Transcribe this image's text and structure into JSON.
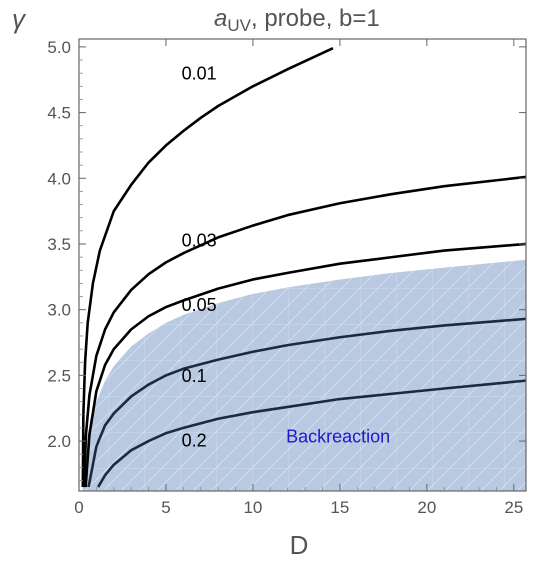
{
  "chart_data": {
    "type": "line",
    "title_main": "a",
    "title_sub": "UV",
    "title_rest": ", probe, b=1",
    "xlabel": "D",
    "ylabel": "γ",
    "xlim": [
      0,
      25.7
    ],
    "ylim": [
      1.62,
      5.06
    ],
    "x_ticks": [
      0,
      5,
      10,
      15,
      20,
      25
    ],
    "y_ticks": [
      2.0,
      2.5,
      3.0,
      3.5,
      4.0,
      4.5,
      5.0
    ],
    "x_tick_labels": [
      "0",
      "5",
      "10",
      "15",
      "20",
      "25"
    ],
    "y_tick_labels": [
      "2.0",
      "2.5",
      "3.0",
      "3.5",
      "4.0",
      "4.5",
      "5.0"
    ],
    "series": [
      {
        "name": "0.01",
        "label_at": [
          5.9,
          4.75
        ],
        "x": [
          0.22,
          0.25,
          0.35,
          0.5,
          0.8,
          1.2,
          2,
          3,
          4,
          5,
          6,
          7,
          8,
          10,
          12,
          14.6
        ],
        "y": [
          1.65,
          2.2,
          2.6,
          2.9,
          3.2,
          3.45,
          3.75,
          3.95,
          4.12,
          4.25,
          4.36,
          4.46,
          4.55,
          4.7,
          4.83,
          4.99
        ]
      },
      {
        "name": "0.03",
        "label_at": [
          5.9,
          3.48
        ],
        "x": [
          0.28,
          0.4,
          0.6,
          1,
          1.5,
          2,
          3,
          4,
          5,
          6,
          8,
          10,
          12,
          15,
          18,
          21,
          25.7
        ],
        "y": [
          1.65,
          2.05,
          2.35,
          2.65,
          2.85,
          2.98,
          3.15,
          3.27,
          3.36,
          3.43,
          3.55,
          3.64,
          3.72,
          3.81,
          3.88,
          3.94,
          4.01
        ]
      },
      {
        "name": "0.05",
        "label_at": [
          5.9,
          2.99
        ],
        "x": [
          0.38,
          0.6,
          1,
          1.5,
          2,
          3,
          4,
          5,
          6,
          8,
          10,
          12,
          15,
          18,
          21,
          25.7
        ],
        "y": [
          1.65,
          2.05,
          2.38,
          2.58,
          2.7,
          2.85,
          2.95,
          3.02,
          3.07,
          3.16,
          3.23,
          3.28,
          3.35,
          3.4,
          3.45,
          3.5
        ]
      },
      {
        "name": "0.1",
        "label_at": [
          5.9,
          2.45
        ],
        "x": [
          0.55,
          1,
          1.5,
          2,
          3,
          4,
          5,
          6,
          8,
          10,
          12,
          15,
          18,
          21,
          25.7
        ],
        "y": [
          1.65,
          1.96,
          2.12,
          2.21,
          2.34,
          2.43,
          2.5,
          2.55,
          2.62,
          2.68,
          2.73,
          2.79,
          2.84,
          2.88,
          2.93
        ]
      },
      {
        "name": "0.2",
        "label_at": [
          5.9,
          1.96
        ],
        "x": [
          1.1,
          1.5,
          2,
          3,
          4,
          5,
          6,
          8,
          10,
          12,
          15,
          18,
          21,
          25.7
        ],
        "y": [
          1.65,
          1.74,
          1.82,
          1.93,
          2.0,
          2.06,
          2.1,
          2.17,
          2.22,
          2.26,
          2.32,
          2.36,
          2.4,
          2.46
        ]
      }
    ],
    "regions": [
      {
        "name": "Backreaction",
        "label_at": [
          14.9,
          1.99
        ],
        "fill": "#b7c8e0",
        "boundary_x": [
          0.2,
          0.5,
          1,
          1.5,
          2,
          3,
          4,
          5,
          6,
          8,
          10,
          12,
          15,
          18,
          21,
          25.7
        ],
        "boundary_y": [
          1.62,
          2.05,
          2.3,
          2.46,
          2.57,
          2.72,
          2.82,
          2.9,
          2.96,
          3.05,
          3.12,
          3.17,
          3.23,
          3.28,
          3.32,
          3.38
        ]
      }
    ]
  }
}
